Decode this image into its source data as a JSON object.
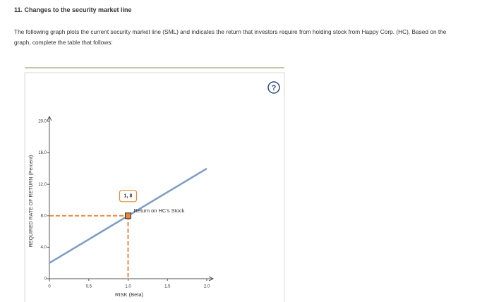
{
  "header": {
    "title": "11. Changes to the security market line"
  },
  "prompt": "The following graph plots the current security market line (SML) and indicates the return that investors require from holding stock from Happy Corp. (HC). Based on the graph, complete the table that follows:",
  "help_icon": "?",
  "chart_data": {
    "type": "line",
    "x_label": "RISK (Beta)",
    "y_label": "REQUIRED RATE OF RETURN (Percent)",
    "x": [
      0,
      1,
      2
    ],
    "series": [
      {
        "color": "#7b9cc4",
        "values": [
          2,
          8,
          14
        ]
      }
    ],
    "point": {
      "x": 1,
      "y": 8,
      "label": "1, 8",
      "annotation": "Return on HC's Stock",
      "color": "#e8883a"
    },
    "xlim": [
      0,
      2
    ],
    "ylim": [
      0,
      20
    ],
    "xticks": [
      0,
      0.5,
      {
        "value": 1,
        "label": "1.0"
      },
      1.5,
      {
        "value": 2,
        "label": "2.0"
      }
    ],
    "yticks": [
      0,
      {
        "value": 4,
        "label": "4.0"
      },
      {
        "value": 8,
        "label": "8.0"
      },
      {
        "value": 12,
        "label": "12.0"
      },
      {
        "value": 16,
        "label": "16.0"
      },
      {
        "value": 20,
        "label": "20.0"
      }
    ]
  }
}
